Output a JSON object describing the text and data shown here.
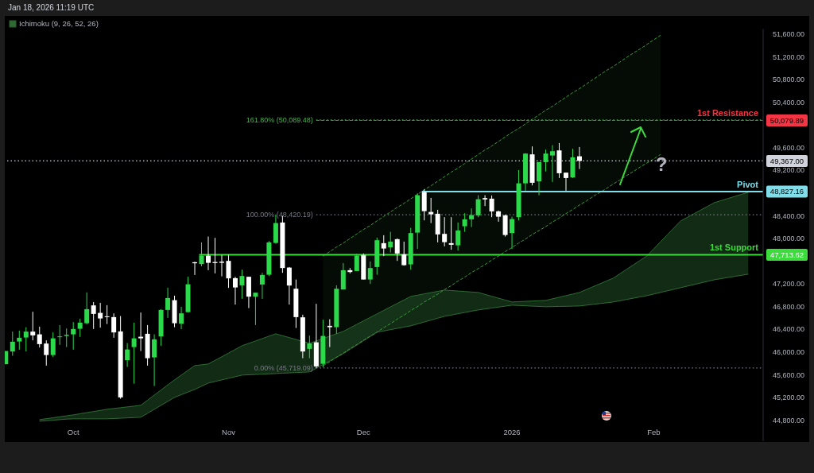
{
  "chart_data": {
    "type": "candlestick",
    "subtitle": "Jan 18, 2026 11:19 UTC",
    "categories": [
      null,
      null,
      null,
      null,
      null,
      null,
      null,
      null,
      null,
      null,
      "Oct",
      null,
      null,
      null,
      null,
      null,
      null,
      null,
      null,
      null,
      null,
      null,
      null,
      null,
      null,
      null,
      null,
      null,
      null,
      null,
      null,
      null,
      null,
      "Nov",
      null,
      null,
      null,
      null,
      null,
      null,
      null,
      null,
      null,
      null,
      null,
      null,
      null,
      null,
      null,
      null,
      null,
      null,
      null,
      "Dec",
      null,
      null,
      null,
      null,
      null,
      null,
      null,
      null,
      null,
      null,
      null,
      null,
      null,
      null,
      null,
      null,
      null,
      null,
      null,
      null,
      null,
      "2026",
      null,
      null,
      null,
      null,
      null,
      null,
      null,
      null,
      null,
      null,
      null,
      null,
      null,
      null,
      null,
      null,
      null,
      null,
      null,
      null,
      "Feb",
      null,
      null,
      null,
      null,
      null,
      null,
      null,
      null,
      null,
      null,
      null,
      null,
      null,
      null,
      null,
      null
    ],
    "ohlc": [
      [
        45786,
        46018,
        45786,
        46018
      ],
      [
        46010,
        46360,
        45934,
        46182
      ],
      [
        46186,
        46378,
        46042,
        46252
      ],
      [
        46256,
        46438,
        46010,
        46360
      ],
      [
        46360,
        46710,
        46206,
        46294
      ],
      [
        46312,
        46448,
        46080,
        46140
      ],
      [
        46150,
        46206,
        45762,
        45948
      ],
      [
        45948,
        46346,
        45916,
        46242
      ],
      [
        46266,
        46476,
        46126,
        46276
      ],
      [
        46284,
        46416,
        46088,
        46304
      ],
      [
        46312,
        46528,
        46042,
        46406
      ],
      [
        46410,
        46588,
        46266,
        46518
      ],
      [
        46508,
        47050,
        46486,
        46756
      ],
      [
        46822,
        46882,
        46406,
        46672
      ],
      [
        46690,
        46868,
        46430,
        46592
      ],
      [
        46630,
        46826,
        46494,
        46616
      ],
      [
        46616,
        46682,
        46252,
        46346
      ],
      [
        46364,
        46634,
        45178,
        45202
      ],
      [
        45856,
        46158,
        45738,
        46046
      ],
      [
        46088,
        46518,
        45444,
        46242
      ],
      [
        46270,
        46696,
        46018,
        46242
      ],
      [
        46322,
        46476,
        45762,
        45892
      ],
      [
        45906,
        46312,
        45402,
        46224
      ],
      [
        46276,
        46756,
        46112,
        46742
      ],
      [
        46742,
        47134,
        46602,
        46952
      ],
      [
        46914,
        46994,
        46438,
        46508
      ],
      [
        46500,
        46798,
        46402,
        46682
      ],
      [
        46704,
        47326,
        46696,
        47194
      ],
      [
        47582,
        47592,
        47358,
        47564
      ],
      [
        47550,
        47932,
        47512,
        47698
      ],
      [
        47698,
        48034,
        47442,
        47572
      ],
      [
        47586,
        48012,
        47386,
        47568
      ],
      [
        47592,
        47708,
        47334,
        47572
      ],
      [
        47606,
        47718,
        47130,
        47298
      ],
      [
        47302,
        47326,
        46836,
        47138
      ],
      [
        47176,
        47452,
        46938,
        47340
      ],
      [
        47326,
        47326,
        46774,
        46976
      ],
      [
        46976,
        47046,
        46476,
        47046
      ],
      [
        47190,
        47396,
        46938,
        47358
      ],
      [
        47362,
        47956,
        47340,
        47932
      ],
      [
        47922,
        48420,
        47908,
        48272
      ],
      [
        48282,
        48398,
        47396,
        47480
      ],
      [
        47488,
        47498,
        46836,
        47172
      ],
      [
        47116,
        47278,
        46424,
        46616
      ],
      [
        46612,
        46658,
        45892,
        46010
      ],
      [
        46056,
        46290,
        45892,
        46150
      ],
      [
        46172,
        46850,
        45719,
        45748
      ],
      [
        45794,
        46570,
        45730,
        46284
      ],
      [
        46462,
        46578,
        46088,
        46438
      ],
      [
        46438,
        47176,
        46322,
        47116
      ],
      [
        47102,
        47568,
        47102,
        47442
      ],
      [
        47442,
        47480,
        47386,
        47410
      ],
      [
        47428,
        47732,
        47428,
        47698
      ],
      [
        47708,
        47736,
        47278,
        47278
      ],
      [
        47278,
        47596,
        47200,
        47480
      ],
      [
        47498,
        48016,
        47362,
        47970
      ],
      [
        47918,
        48058,
        47690,
        47824
      ],
      [
        47844,
        48118,
        47754,
        47946
      ],
      [
        47988,
        48002,
        47606,
        47736
      ],
      [
        47722,
        47946,
        47522,
        47530
      ],
      [
        47544,
        48188,
        47452,
        48096
      ],
      [
        48104,
        48796,
        47816,
        48762
      ],
      [
        48818,
        48866,
        48320,
        48482
      ],
      [
        48468,
        48716,
        48272,
        48426
      ],
      [
        48436,
        48506,
        47932,
        48072
      ],
      [
        48082,
        48376,
        47862,
        47936
      ],
      [
        47918,
        48376,
        47802,
        47890
      ],
      [
        47880,
        48282,
        47788,
        48142
      ],
      [
        48216,
        48446,
        48118,
        48338
      ],
      [
        48338,
        48530,
        48202,
        48412
      ],
      [
        48408,
        48762,
        48376,
        48692
      ],
      [
        48712,
        48762,
        48572,
        48688
      ],
      [
        48702,
        48758,
        48376,
        48478
      ],
      [
        48478,
        48492,
        48296,
        48384
      ],
      [
        48408,
        48422,
        48034,
        48062
      ],
      [
        48096,
        48384,
        47816,
        48342
      ],
      [
        48376,
        49206,
        48320,
        48972
      ],
      [
        48972,
        49504,
        48842,
        49496
      ],
      [
        49482,
        49622,
        48936,
        48982
      ],
      [
        49006,
        49346,
        48762,
        49346
      ],
      [
        49346,
        49566,
        49182,
        49496
      ],
      [
        49462,
        49644,
        48996,
        49538
      ],
      [
        49552,
        49682,
        49066,
        49150
      ],
      [
        49160,
        49160,
        48842,
        49066
      ],
      [
        49076,
        49580,
        49066,
        49430
      ],
      [
        49448,
        49612,
        49224,
        49367
      ],
      null,
      null,
      null,
      null,
      null,
      null,
      null,
      null,
      null,
      null,
      null,
      null,
      null,
      null,
      null,
      null,
      null,
      null,
      null,
      null,
      null,
      null,
      null,
      null,
      null,
      null,
      null
    ],
    "colors": [
      "#2bd94a",
      "#2bd94a",
      "#2bd94a",
      "#2bd94a",
      "#ffffff",
      "#ffffff",
      "#ffffff",
      "#2bd94a",
      "#2bd94a",
      "#2bd94a",
      "#2bd94a",
      "#2bd94a",
      "#2bd94a",
      "#ffffff",
      "#ffffff",
      "#ffffff",
      "#ffffff",
      "#ffffff",
      "#2bd94a",
      "#2bd94a",
      "#ffffff",
      "#ffffff",
      "#2bd94a",
      "#2bd94a",
      "#2bd94a",
      "#ffffff",
      "#2bd94a",
      "#2bd94a",
      "#ffffff",
      "#2bd94a",
      "#ffffff",
      "#ffffff",
      "#ffffff",
      "#ffffff",
      "#ffffff",
      "#2bd94a",
      "#ffffff",
      "#2bd94a",
      "#2bd94a",
      "#2bd94a",
      "#2bd94a",
      "#ffffff",
      "#ffffff",
      "#ffffff",
      "#ffffff",
      "#2bd94a",
      "#ffffff",
      "#2bd94a",
      "#ffffff",
      "#2bd94a",
      "#2bd94a",
      "#ffffff",
      "#2bd94a",
      "#ffffff",
      "#2bd94a",
      "#2bd94a",
      "#ffffff",
      "#2bd94a",
      "#ffffff",
      "#ffffff",
      "#2bd94a",
      "#2bd94a",
      "#ffffff",
      "#ffffff",
      "#ffffff",
      "#ffffff",
      "#ffffff",
      "#2bd94a",
      "#2bd94a",
      "#2bd94a",
      "#2bd94a",
      "#ffffff",
      "#ffffff",
      "#ffffff",
      "#ffffff",
      "#2bd94a",
      "#2bd94a",
      "#2bd94a",
      "#ffffff",
      "#2bd94a",
      "#2bd94a",
      "#2bd94a",
      "#ffffff",
      "#ffffff",
      "#2bd94a",
      "#ffffff",
      null,
      null,
      null,
      null,
      null,
      null,
      null,
      null,
      null,
      null,
      null,
      null,
      null,
      null,
      null,
      null,
      null,
      null,
      null,
      null,
      null,
      null,
      null,
      null,
      null,
      null,
      null
    ],
    "series": [
      {
        "type": "line",
        "name": "Ichimoku (9, 26, 52, 26)",
        "color": "#2e6b34",
        "values": [
          null,
          null,
          null,
          null,
          null,
          44810,
          44827,
          44843,
          44860,
          44877,
          44894,
          44914,
          44933,
          44953,
          44972,
          44992,
          45006,
          45020,
          45034,
          45048,
          45062,
          45152,
          45242,
          45332,
          45422,
          45510,
          45594,
          45678,
          45762,
          45776,
          45790,
          45854,
          45918,
          45982,
          46046,
          46112,
          46154,
          46196,
          46238,
          46280,
          46322,
          46288,
          46255,
          46221,
          46188,
          46154,
          46196,
          46238,
          46280,
          46322,
          46364,
          46426,
          46488,
          46550,
          46611,
          46672,
          46734,
          46796,
          46857,
          46918,
          46980,
          47002,
          47025,
          47047,
          47070,
          47092,
          47084,
          47075,
          47067,
          47058,
          47050,
          47016,
          46983,
          46949,
          46916,
          46882,
          46888,
          46893,
          46899,
          46904,
          46910,
          46938,
          46966,
          46994,
          47022,
          47050,
          47100,
          47151,
          47201,
          47252,
          47302,
          47380,
          47459,
          47537,
          47616,
          47694,
          47817,
          47940,
          48064,
          48187,
          48310,
          48374,
          48439,
          48503,
          48568,
          48632,
          48668,
          48705,
          48741,
          48778,
          48814,
          null,
          null
        ]
      },
      {
        "type": "line",
        "color": "#2e6b34",
        "values": [
          null,
          null,
          null,
          null,
          null,
          44782,
          44791,
          44800,
          44810,
          44819,
          44824,
          44824,
          44824,
          44824,
          44824,
          44824,
          44830,
          44835,
          44841,
          44846,
          44852,
          44922,
          44992,
          45062,
          45132,
          45202,
          45249,
          45296,
          45342,
          45398,
          45454,
          45482,
          45510,
          45538,
          45566,
          45594,
          45600,
          45605,
          45611,
          45616,
          45622,
          45628,
          45633,
          45639,
          45644,
          45650,
          45714,
          45779,
          45843,
          45908,
          45972,
          46048,
          46123,
          46199,
          46274,
          46350,
          46372,
          46395,
          46417,
          46440,
          46462,
          46496,
          46529,
          46563,
          46596,
          46630,
          46652,
          46675,
          46697,
          46720,
          46742,
          46759,
          46776,
          46792,
          46809,
          46826,
          46820,
          46815,
          46809,
          46804,
          46798,
          46801,
          46804,
          46806,
          46809,
          46812,
          46826,
          46840,
          46854,
          46868,
          46882,
          46904,
          46927,
          46949,
          46972,
          46994,
          47022,
          47050,
          47078,
          47106,
          47134,
          47162,
          47190,
          47218,
          47246,
          47274,
          47294,
          47313,
          47333,
          47352,
          47372,
          null,
          null
        ]
      },
      {
        "type": "line",
        "color": "#3a9a3a",
        "line_style": "dashed",
        "values": [
          null,
          null,
          null,
          null,
          null,
          null,
          null,
          null,
          null,
          null,
          null,
          null,
          null,
          null,
          null,
          null,
          null,
          null,
          null,
          null,
          null,
          null,
          null,
          null,
          null,
          null,
          null,
          null,
          null,
          null,
          null,
          null,
          null,
          null,
          null,
          null,
          null,
          null,
          null,
          null,
          null,
          null,
          null,
          null,
          null,
          null,
          null,
          47690,
          47770,
          47850,
          47920,
          48000,
          48080,
          48160,
          48230,
          48310,
          48390,
          48470,
          48550,
          48620,
          48700,
          48780,
          48860,
          48930,
          49010,
          49090,
          49170,
          49240,
          49320,
          49400,
          49480,
          49560,
          49630,
          49710,
          49790,
          49870,
          49940,
          50020,
          50100,
          50180,
          50260,
          50330,
          50410,
          50490,
          50570,
          50640,
          50720,
          50800,
          50880,
          50960,
          51030,
          51110,
          51190,
          51270,
          51340,
          51420,
          51500,
          51580,
          null,
          null,
          null,
          null,
          null,
          null,
          null,
          null,
          null,
          null,
          null,
          null,
          null,
          null,
          null
        ]
      },
      {
        "type": "line",
        "color": "#3a9a3a",
        "line_style": "dashed",
        "values": [
          null,
          null,
          null,
          null,
          null,
          null,
          null,
          null,
          null,
          null,
          null,
          null,
          null,
          null,
          null,
          null,
          null,
          null,
          null,
          null,
          null,
          null,
          null,
          null,
          null,
          null,
          null,
          null,
          null,
          null,
          null,
          null,
          null,
          null,
          null,
          null,
          null,
          null,
          null,
          null,
          null,
          null,
          null,
          null,
          null,
          null,
          null,
          45760,
          45830,
          45910,
          45980,
          46060,
          46130,
          46210,
          46280,
          46350,
          46430,
          46500,
          46580,
          46650,
          46730,
          46800,
          46880,
          46950,
          47020,
          47100,
          47170,
          47250,
          47320,
          47400,
          47470,
          47540,
          47620,
          47690,
          47770,
          47840,
          47920,
          47990,
          48070,
          48140,
          48210,
          48290,
          48360,
          48440,
          48510,
          48590,
          48660,
          48740,
          48810,
          48880,
          48960,
          49030,
          49110,
          49180,
          49260,
          49330,
          49400,
          49480,
          null,
          null,
          null,
          null,
          null,
          null,
          null,
          null,
          null,
          null,
          null,
          null,
          null,
          null,
          null
        ]
      }
    ],
    "ylim": [
      44430,
      51690
    ],
    "yticks": [
      {
        "value": 44800,
        "label": "44,800.00"
      },
      {
        "value": 45200,
        "label": "45,200.00"
      },
      {
        "value": 45600,
        "label": "45,600.00"
      },
      {
        "value": 46000,
        "label": "46,000.00"
      },
      {
        "value": 46400,
        "label": "46,400.00"
      },
      {
        "value": 46800,
        "label": "46,800.00"
      },
      {
        "value": 47200,
        "label": "47,200.00"
      },
      {
        "value": 48000,
        "label": "48,000.00"
      },
      {
        "value": 48400,
        "label": "48,400.00"
      },
      {
        "value": 49200,
        "label": "49,200.00"
      },
      {
        "value": 49600,
        "label": "49,600.00"
      },
      {
        "value": 50400,
        "label": "50,400.00"
      },
      {
        "value": 50800,
        "label": "50,800.00"
      },
      {
        "value": 51200,
        "label": "51,200.00"
      },
      {
        "value": 51600,
        "label": "51,600.00"
      }
    ],
    "ref_lines": [
      {
        "axis": "y",
        "value": 50089.48,
        "label": "161.80% (50,089.48)",
        "color": "#4caf50",
        "line_style": "dotted"
      },
      {
        "axis": "y",
        "value": 50079.89,
        "label": "1st Resistance",
        "color": "#f23645",
        "line_style": "dashed"
      },
      {
        "axis": "y",
        "value": 49367,
        "color": "#d1d4dc",
        "line_style": "dotted"
      },
      {
        "axis": "y",
        "value": 48827.16,
        "label": "Pivot",
        "color": "#80deea",
        "line_style": "solid"
      },
      {
        "axis": "y",
        "value": 48420.19,
        "label": "100.00% (48,420.19)",
        "color": "#787b86",
        "line_style": "dotted"
      },
      {
        "axis": "y",
        "value": 47713.62,
        "label": "1st Support",
        "color": "#3cdc3c",
        "line_style": "solid"
      },
      {
        "axis": "y",
        "value": 45719.09,
        "label": "0.00% (45,719.09)",
        "color": "#787b86",
        "line_style": "dotted"
      }
    ],
    "annotations": [
      "50,079.89",
      "49,367.00",
      "48,827.16",
      "47,713.62",
      "?"
    ],
    "legend": "top left"
  }
}
